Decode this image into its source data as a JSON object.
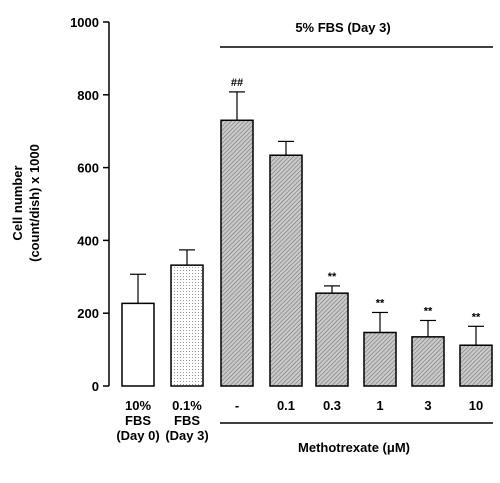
{
  "chart_data": {
    "type": "bar",
    "title": "",
    "ylabel_line1": "Cell number",
    "ylabel_line2": "(count/dish) x 1000",
    "xlabel": "Methotrexate (μM)",
    "group_label": "5% FBS (Day 3)",
    "ylim": [
      0,
      1000
    ],
    "yticks": [
      "0",
      "200",
      "400",
      "600",
      "800",
      "1000"
    ],
    "categories": [
      [
        "10%",
        "FBS",
        "(Day 0)"
      ],
      [
        "0.1%",
        "FBS",
        "(Day 3)"
      ],
      [
        "-"
      ],
      [
        "0.1"
      ],
      [
        "0.3"
      ],
      [
        "1"
      ],
      [
        "3"
      ],
      [
        "10"
      ]
    ],
    "values": [
      227,
      332,
      730,
      634,
      255,
      147,
      135,
      112
    ],
    "errors": [
      80,
      42,
      78,
      38,
      20,
      55,
      45,
      52
    ],
    "fills": [
      "white",
      "dotted",
      "hatched",
      "hatched",
      "hatched",
      "hatched",
      "hatched",
      "hatched"
    ],
    "annotations": [
      "",
      "",
      "##",
      "",
      "**",
      "**",
      "**",
      "**"
    ],
    "colors": {
      "bar_stroke": "#000000",
      "hatch_fill": "#c9c9c9",
      "hatch_line": "#6a6a6a"
    }
  }
}
